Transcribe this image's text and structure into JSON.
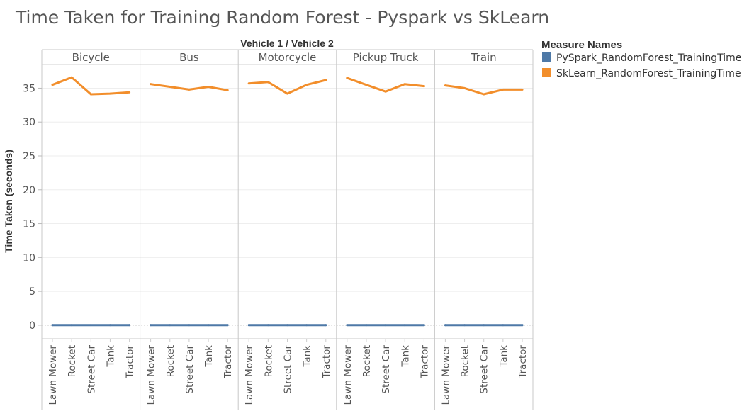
{
  "chart_data": {
    "type": "line",
    "title": "Time Taken for Training Random Forest - Pyspark vs SkLearn",
    "column_header": "Vehicle 1  /  Vehicle 2",
    "ylabel": "Time Taken (seconds)",
    "ylim": [
      -2,
      38.5
    ],
    "yticks": [
      0,
      5,
      10,
      15,
      20,
      25,
      30,
      35
    ],
    "grid": true,
    "legend_position": "right",
    "legend_title": "Measure Names",
    "panels": [
      "Bicycle",
      "Bus",
      "Motorcycle",
      "Pickup Truck",
      "Train"
    ],
    "categories": [
      "Lawn Mower",
      "Rocket",
      "Street Car",
      "Tank",
      "Tractor"
    ],
    "series": [
      {
        "name": "PySpark_RandomForest_TrainingTime",
        "color": "#4e79a7",
        "values": [
          [
            0.02,
            0.02,
            0.02,
            0.02,
            0.02
          ],
          [
            0.02,
            0.02,
            0.02,
            0.02,
            0.02
          ],
          [
            0.02,
            0.02,
            0.02,
            0.02,
            0.02
          ],
          [
            0.02,
            0.02,
            0.02,
            0.02,
            0.02
          ],
          [
            0.02,
            0.02,
            0.02,
            0.02,
            0.02
          ]
        ]
      },
      {
        "name": "SkLearn_RandomForest_TrainingTime",
        "color": "#f28e2b",
        "values": [
          [
            35.5,
            36.6,
            34.1,
            34.2,
            34.4
          ],
          [
            35.6,
            35.2,
            34.8,
            35.2,
            34.7
          ],
          [
            35.7,
            35.9,
            34.2,
            35.5,
            36.2
          ],
          [
            36.5,
            35.5,
            34.5,
            35.6,
            35.3
          ],
          [
            35.4,
            35.0,
            34.1,
            34.8,
            34.8
          ]
        ]
      }
    ]
  }
}
